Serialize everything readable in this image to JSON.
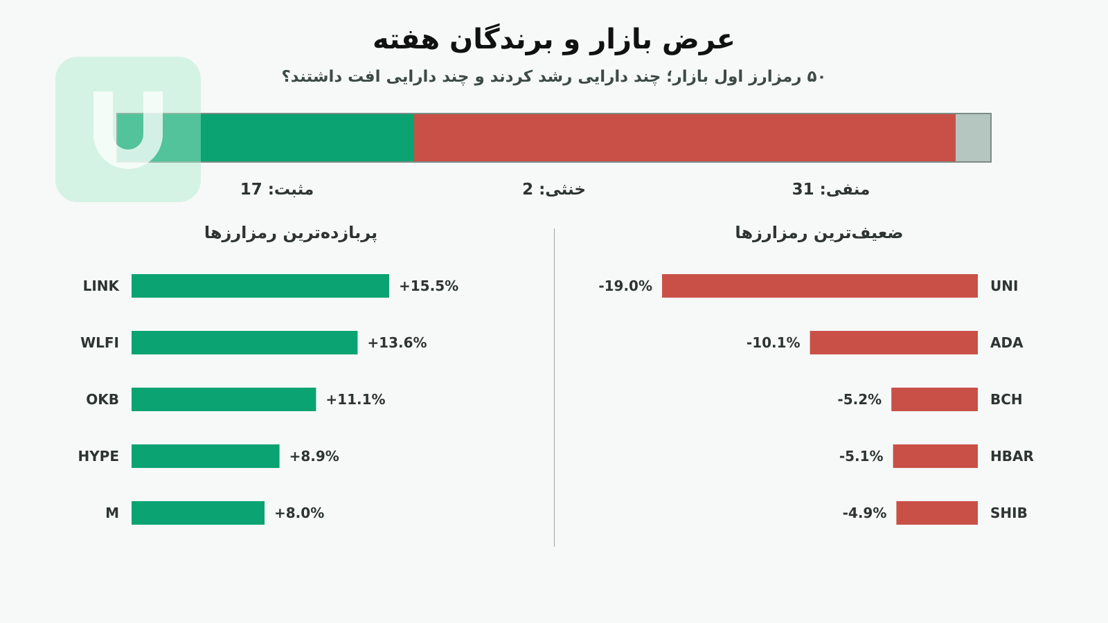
{
  "title": "عرض بازار و برندگان هفته",
  "subtitle": "۵۰ رمزارز اول بازار؛ چند دارایی رشد کردند و چند دارایی افت داشتند؟",
  "colors": {
    "positive": "#0aa371",
    "negative": "#c95047",
    "neutral": "#b5c5bf",
    "background": "#f6f9f8"
  },
  "logo": {
    "icon": "brand-u-logo-icon"
  },
  "chart_data": [
    {
      "type": "bar",
      "orientation": "horizontal-stacked",
      "categories": [
        "positive",
        "negative",
        "neutral"
      ],
      "values": [
        17,
        31,
        2
      ],
      "labels": {
        "positive": "مثبت: 17",
        "neutral": "خنثی: 2",
        "negative": "منفی: 31"
      }
    },
    {
      "type": "bar",
      "orientation": "horizontal",
      "title": "پربازده‌ترین رمزارزها",
      "categories": [
        "LINK",
        "WLFI",
        "OKB",
        "HYPE",
        "M"
      ],
      "values": [
        15.5,
        13.6,
        11.1,
        8.9,
        8.0
      ],
      "value_labels": [
        "+15.5%",
        "+13.6%",
        "+11.1%",
        "+8.9%",
        "+8.0%"
      ]
    },
    {
      "type": "bar",
      "orientation": "horizontal",
      "title": "ضعیف‌ترین رمزارزها",
      "categories": [
        "UNI",
        "ADA",
        "BCH",
        "HBAR",
        "SHIB"
      ],
      "values": [
        -19.0,
        -10.1,
        -5.2,
        -5.1,
        -4.9
      ],
      "value_labels": [
        "-19.0%",
        "-10.1%",
        "-5.2%",
        "-5.1%",
        "-4.9%"
      ]
    }
  ]
}
